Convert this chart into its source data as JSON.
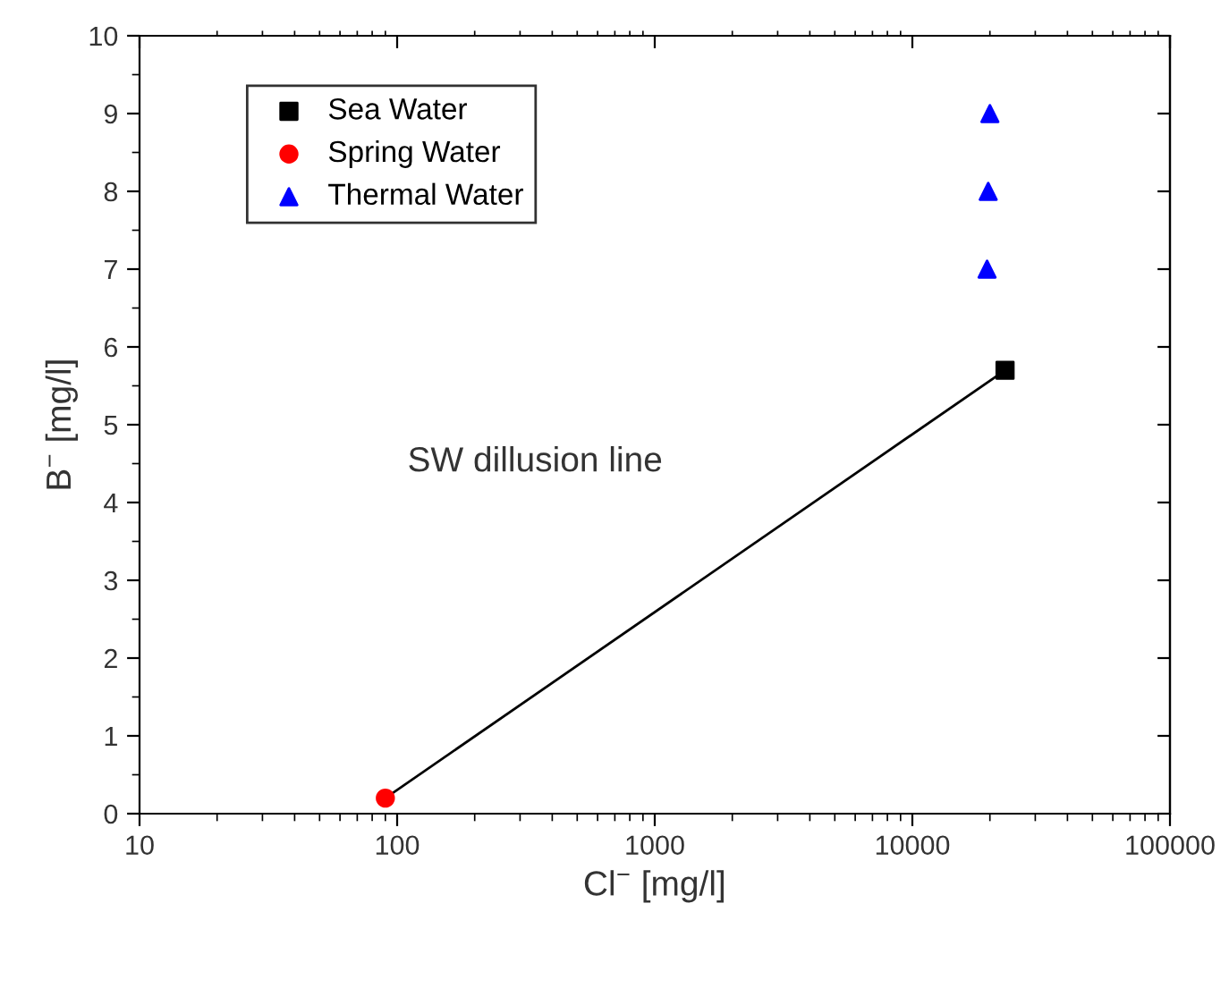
{
  "chart_data": {
    "type": "scatter",
    "xlabel": "Cl$^{−}$ [mg/l]",
    "ylabel": "B$^{−}$ [mg/l]",
    "log": "x",
    "xlim": [
      10,
      100000
    ],
    "xticks": [
      10,
      100,
      1000,
      10000,
      100000
    ],
    "ylim": [
      0,
      10
    ],
    "yticks": [
      0,
      1,
      2,
      3,
      4,
      5,
      6,
      7,
      8,
      9,
      10
    ],
    "grid": false,
    "legend": "top left",
    "series": [
      {
        "name": "Sea Water",
        "color": "#000000",
        "marker": "square",
        "x": [
          22900
        ],
        "values": [
          5.7
        ]
      },
      {
        "name": "Spring Water",
        "color": "#ff0000",
        "marker": "circle",
        "x": [
          90
        ],
        "values": [
          0.2
        ]
      },
      {
        "name": "Thermal Water",
        "color": "#0000ff",
        "marker": "triangle",
        "x": [
          20000,
          19700,
          19500
        ],
        "values": [
          9,
          8,
          7
        ]
      },
      {
        "type": "line",
        "color": "#000000",
        "marker": "none",
        "x": [
          90,
          22900
        ],
        "values": [
          0.2,
          5.7
        ]
      }
    ],
    "annotations": [
      "SW dillusion line"
    ]
  }
}
